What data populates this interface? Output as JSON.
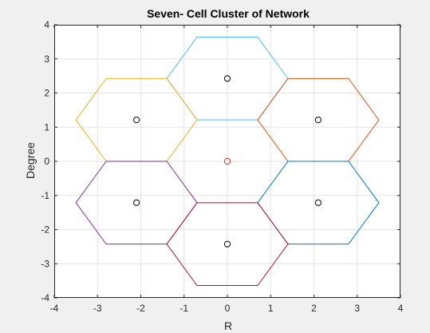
{
  "chart_data": {
    "type": "scatter",
    "title": "Seven- Cell Cluster of Network",
    "xlabel": "R",
    "ylabel": "Degree",
    "xlim": [
      -4,
      4
    ],
    "ylim": [
      -4,
      4
    ],
    "xticks": [
      -4,
      -3,
      -2,
      -1,
      0,
      1,
      2,
      3,
      4
    ],
    "yticks": [
      -4,
      -3,
      -2,
      -1,
      0,
      1,
      2,
      3,
      4
    ],
    "grid": true,
    "legend": "none",
    "cell_size": 1.4,
    "cells": [
      {
        "name": "center",
        "center": [
          0,
          0
        ],
        "color": "#d22a1e",
        "marker": "o",
        "hexagon": false
      },
      {
        "name": "top",
        "center": [
          0,
          2.425
        ],
        "color": "#4dbeee",
        "marker": "o",
        "hexagon": true
      },
      {
        "name": "upper-left",
        "center": [
          -2.1,
          1.212
        ],
        "color": "#edb120",
        "marker": "o",
        "hexagon": true
      },
      {
        "name": "upper-right",
        "center": [
          2.1,
          1.212
        ],
        "color": "#d95319",
        "marker": "o",
        "hexagon": true
      },
      {
        "name": "lower-left",
        "center": [
          -2.1,
          -1.212
        ],
        "color": "#7e2f8e",
        "marker": "o",
        "hexagon": true
      },
      {
        "name": "lower-right",
        "center": [
          2.1,
          -1.212
        ],
        "color": "#0072bd",
        "marker": "o",
        "hexagon": true
      },
      {
        "name": "bottom",
        "center": [
          0,
          -2.425
        ],
        "color": "#a2142f",
        "marker": "o",
        "hexagon": true
      }
    ],
    "colors": {
      "figure_bg": "#f0f0f0",
      "axes_bg": "#ffffff",
      "grid": "#e3e3e3",
      "axis": "#262626",
      "marker_default": "#000000"
    }
  }
}
